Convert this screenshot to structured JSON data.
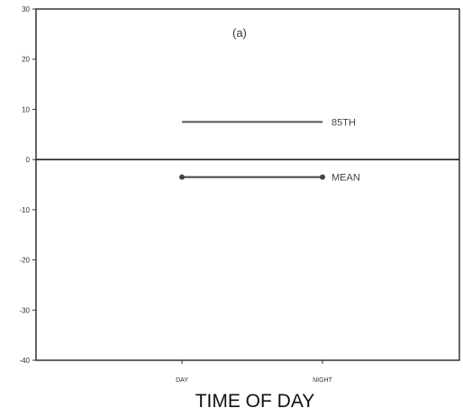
{
  "chart_data": {
    "type": "line",
    "annotation": "(a)",
    "xlabel": "TIME OF DAY",
    "ylabel": "",
    "categories": [
      "DAY",
      "NIGHT"
    ],
    "ylim": [
      -40,
      30
    ],
    "yticks": [
      -40,
      -30,
      -20,
      -10,
      0,
      10,
      20,
      30
    ],
    "grid": false,
    "reference_line": 0,
    "series": [
      {
        "name": "85TH",
        "values": [
          7.5,
          7.5
        ],
        "color": "#555555",
        "markers": false
      },
      {
        "name": "MEAN",
        "values": [
          -3.5,
          -3.5
        ],
        "color": "#444444",
        "markers": true
      }
    ]
  }
}
